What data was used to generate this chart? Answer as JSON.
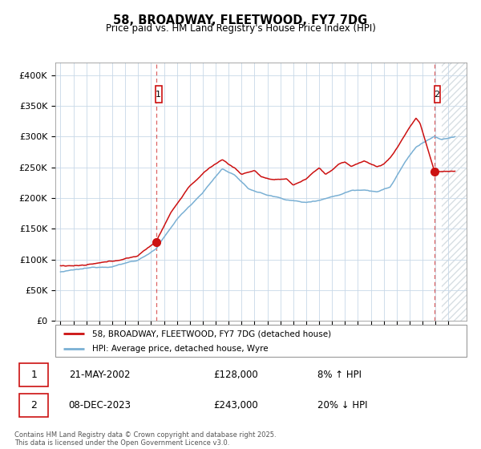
{
  "title": "58, BROADWAY, FLEETWOOD, FY7 7DG",
  "subtitle": "Price paid vs. HM Land Registry's House Price Index (HPI)",
  "ylabel_ticks": [
    "£0",
    "£50K",
    "£100K",
    "£150K",
    "£200K",
    "£250K",
    "£300K",
    "£350K",
    "£400K"
  ],
  "ytick_values": [
    0,
    50000,
    100000,
    150000,
    200000,
    250000,
    300000,
    350000,
    400000
  ],
  "ylim": [
    0,
    420000
  ],
  "xlim_start": 1994.6,
  "xlim_end": 2026.4,
  "red_line_color": "#cc1111",
  "blue_line_color": "#7ab0d4",
  "sale1_year": 2002.388,
  "sale1_price": 128000,
  "sale2_year": 2023.917,
  "sale2_price": 243000,
  "legend_label_red": "58, BROADWAY, FLEETWOOD, FY7 7DG (detached house)",
  "legend_label_blue": "HPI: Average price, detached house, Wyre",
  "annotation1_label": "1",
  "annotation1_date": "21-MAY-2002",
  "annotation1_price": "£128,000",
  "annotation1_hpi": "8% ↑ HPI",
  "annotation2_label": "2",
  "annotation2_date": "08-DEC-2023",
  "annotation2_price": "£243,000",
  "annotation2_hpi": "20% ↓ HPI",
  "footer": "Contains HM Land Registry data © Crown copyright and database right 2025.\nThis data is licensed under the Open Government Licence v3.0.",
  "background_color": "#ffffff",
  "grid_color": "#c8d8e8",
  "hatch_start": 2024.5,
  "hatch_color": "#d0d8e0"
}
